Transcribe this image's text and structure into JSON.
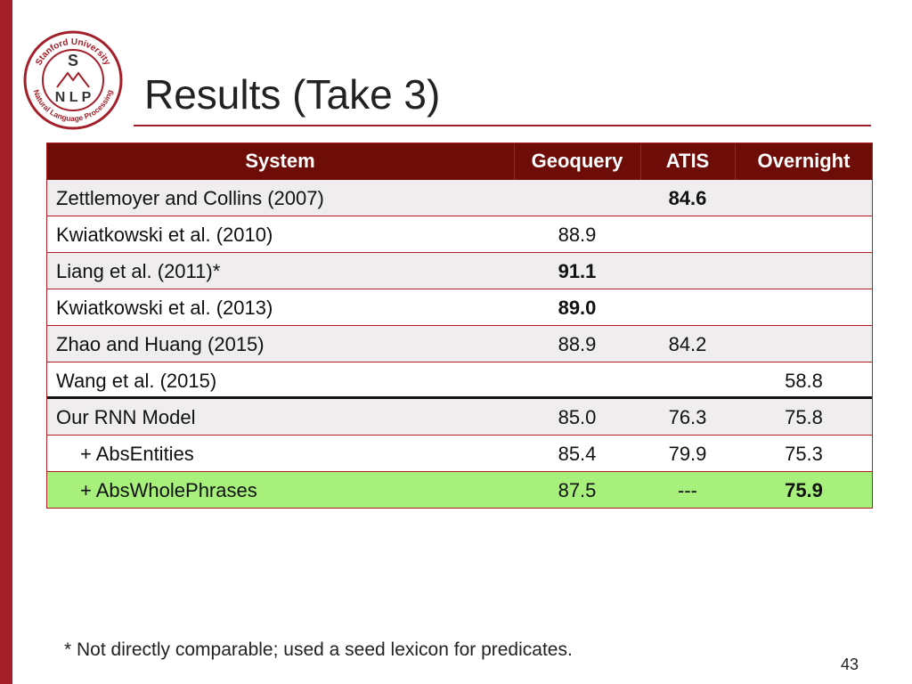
{
  "logo": {
    "top_text": "Stanford University",
    "letter": "S",
    "nlp": "N L P",
    "bottom_text": "Natural Language Processing"
  },
  "header": {
    "title": "Results (Take 3)"
  },
  "table": {
    "columns": [
      "System",
      "Geoquery",
      "ATIS",
      "Overnight"
    ],
    "rows": [
      {
        "cells": [
          "Zettlemoyer and Collins (2007)",
          null,
          {
            "text": "84.6",
            "bold": true
          },
          null
        ],
        "shaded": true
      },
      {
        "cells": [
          "Kwiatkowski et al. (2010)",
          {
            "text": "88.9"
          },
          null,
          null
        ]
      },
      {
        "cells": [
          "Liang et al. (2011)*",
          {
            "text": "91.1",
            "bold": true
          },
          null,
          null
        ],
        "shaded": true
      },
      {
        "cells": [
          "Kwiatkowski et al. (2013)",
          {
            "text": "89.0",
            "bold": true
          },
          null,
          null
        ]
      },
      {
        "cells": [
          "Zhao and Huang (2015)",
          {
            "text": "88.9"
          },
          {
            "text": "84.2"
          },
          null
        ],
        "shaded": true
      },
      {
        "cells": [
          "Wang et al. (2015)",
          null,
          null,
          {
            "text": "58.8"
          }
        ],
        "separator_below": true
      },
      {
        "cells": [
          "Our RNN Model",
          {
            "text": "85.0"
          },
          {
            "text": "76.3"
          },
          {
            "text": "75.8"
          }
        ],
        "shaded": true
      },
      {
        "cells": [
          "+ AbsEntities",
          {
            "text": "85.4"
          },
          {
            "text": "79.9"
          },
          {
            "text": "75.3"
          }
        ],
        "indent": true
      },
      {
        "cells": [
          "+ AbsWholePhrases",
          {
            "text": "87.5"
          },
          {
            "text": "---"
          },
          {
            "text": "75.9",
            "bold": true
          }
        ],
        "indent": true,
        "highlight": true
      }
    ]
  },
  "footnote": "* Not directly comparable; used a seed lexicon for predicates.",
  "page_number": "43"
}
